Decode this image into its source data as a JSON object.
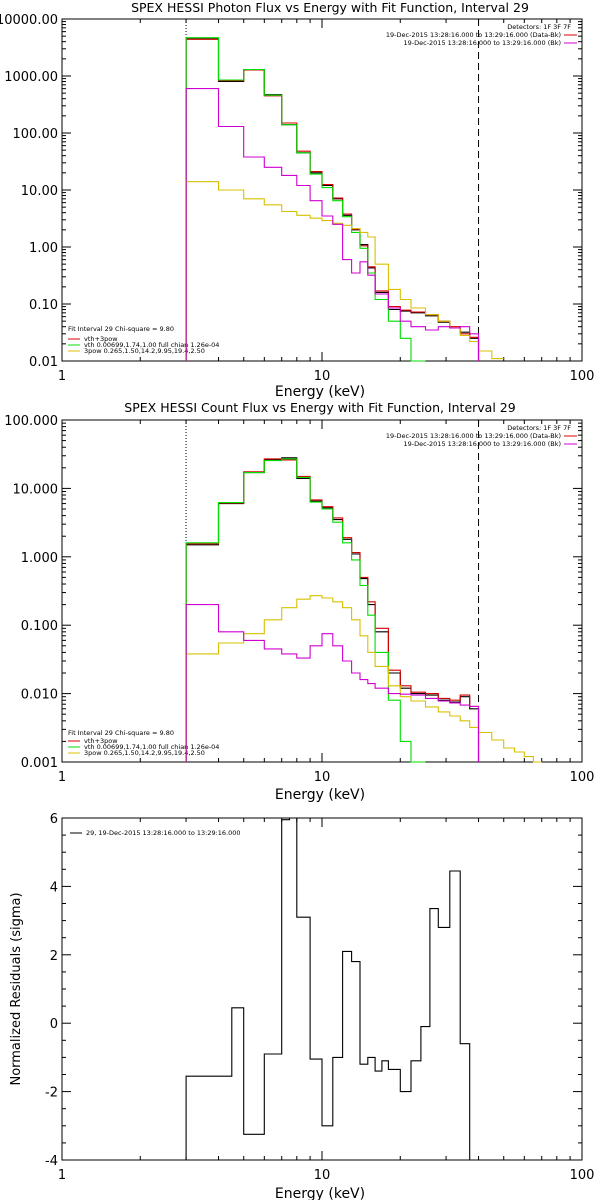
{
  "colors": {
    "data": "#000000",
    "total": "#d40000",
    "thermal": "#00dd00",
    "powerlaw": "#d8c000",
    "background": "#d000d0"
  },
  "chart_data": [
    {
      "type": "line",
      "title": "SPEX HESSI Photon Flux vs Energy with Fit Function, Interval 29",
      "xlabel": "Energy (keV)",
      "ylabel": "",
      "xscale": "log",
      "yscale": "log",
      "xlim": [
        1,
        100
      ],
      "ylim": [
        0.01,
        10000
      ],
      "xtick_labels": [
        "1",
        "10",
        "100"
      ],
      "ytick_labels": [
        "0.01",
        "0.10",
        "1.00",
        "10.00",
        "100.00",
        "1000.00",
        "10000.00"
      ],
      "vertical_lines": [
        {
          "x": 3,
          "style": "dotted"
        },
        {
          "x": 40,
          "style": "dashed"
        }
      ],
      "header_text": [
        "Detectors: 1F 3F 7F",
        "19-Dec-2015 13:28:16.000 to 13:29:16.000 (Data-Bk)",
        "19-Dec-2015 13:28:16.000 to 13:29:16.000 (Bk)"
      ],
      "fit_text": [
        "Fit Interval 29   Chi-square = 9.80",
        "vth+3pow",
        "vth 0.00699,1.74,1.00  full chian 1.26e-04",
        "3pow 0.265,1.50,14.2,9.95,19.4,2.50"
      ],
      "edges": [
        3,
        4,
        5,
        6,
        7,
        8,
        9,
        10,
        11,
        12,
        13,
        14,
        15,
        16,
        18,
        20,
        22,
        25,
        28,
        31,
        34,
        37,
        40,
        45,
        50
      ],
      "series": [
        {
          "color_key": "data",
          "values": [
            4500,
            800,
            1300,
            470,
            140,
            45,
            20,
            12,
            7,
            3.6,
            2.0,
            1.1,
            0.43,
            0.16,
            0.08,
            0.075,
            0.07,
            0.062,
            0.048,
            0.038,
            0.032,
            0.025,
            null,
            null
          ]
        },
        {
          "color_key": "total",
          "values": [
            4400,
            830,
            1280,
            450,
            150,
            48,
            21,
            12.5,
            7.2,
            3.8,
            2.05,
            1.05,
            0.45,
            0.17,
            0.09,
            0.078,
            0.072,
            0.065,
            0.05,
            0.04,
            0.03,
            0.026,
            null,
            null
          ]
        },
        {
          "color_key": "thermal",
          "values": [
            4700,
            850,
            1300,
            460,
            140,
            45,
            19,
            11,
            6.5,
            3.4,
            1.8,
            0.95,
            0.35,
            0.12,
            0.05,
            0.025,
            0.01,
            null,
            null,
            null,
            null,
            null,
            null,
            null
          ]
        },
        {
          "color_key": "powerlaw",
          "values": [
            14,
            10,
            7,
            5.5,
            4.2,
            3.6,
            3.2,
            2.9,
            2.6,
            2.4,
            2.1,
            1.8,
            1.5,
            0.5,
            0.18,
            0.12,
            0.085,
            0.065,
            0.05,
            0.038,
            0.028,
            0.022,
            0.015,
            0.011
          ]
        },
        {
          "color_key": "background",
          "values": [
            600,
            130,
            38,
            25,
            18,
            12,
            6.5,
            3.5,
            2.5,
            0.6,
            0.35,
            0.55,
            0.32,
            0.15,
            0.085,
            0.05,
            0.04,
            0.035,
            0.04,
            0.038,
            0.04,
            0.03,
            null,
            null
          ]
        }
      ]
    },
    {
      "type": "line",
      "title": "SPEX HESSI Count Flux vs Energy with Fit Function, Interval 29",
      "xlabel": "Energy (keV)",
      "ylabel": "",
      "xscale": "log",
      "yscale": "log",
      "xlim": [
        1,
        100
      ],
      "ylim": [
        0.001,
        100
      ],
      "xtick_labels": [
        "1",
        "10",
        "100"
      ],
      "ytick_labels": [
        "0.001",
        "0.010",
        "0.100",
        "1.000",
        "10.000",
        "100.000"
      ],
      "vertical_lines": [
        {
          "x": 3,
          "style": "dotted"
        },
        {
          "x": 40,
          "style": "dashed"
        }
      ],
      "header_text": [
        "Detectors: 1F 3F 7F",
        "19-Dec-2015 13:28:16.000 to 13:29:16.000 (Data-Bk)",
        "19-Dec-2015 13:28:16.000 to 13:29:16.000 (Bk)"
      ],
      "fit_text": [
        "Fit Interval 29   Chi-square = 9.80",
        "vth+3pow",
        "vth 0.00699,1.74,1.00  full chian 1.26e-04",
        "3pow 0.265,1.50,14.2,9.95,19.4,2.50"
      ],
      "edges": [
        3,
        4,
        5,
        6,
        7,
        8,
        9,
        10,
        11,
        12,
        13,
        14,
        15,
        16,
        18,
        20,
        22,
        25,
        28,
        31,
        34,
        37,
        40,
        45,
        50,
        55,
        60,
        65,
        70
      ],
      "series": [
        {
          "color_key": "data",
          "values": [
            1.5,
            6,
            17,
            26,
            28,
            14,
            6.5,
            5.2,
            3.5,
            1.8,
            1.1,
            0.48,
            0.2,
            0.08,
            0.02,
            0.012,
            0.01,
            0.0095,
            0.008,
            0.0075,
            0.009,
            0.006,
            null,
            null,
            null,
            null,
            null,
            null
          ]
        },
        {
          "color_key": "total",
          "values": [
            1.55,
            6.1,
            17.5,
            27,
            26,
            15,
            6.8,
            5.4,
            3.7,
            1.9,
            1.15,
            0.5,
            0.22,
            0.09,
            0.022,
            0.013,
            0.0105,
            0.01,
            0.0085,
            0.008,
            0.0095,
            0.0065,
            null,
            null,
            null,
            null,
            null,
            null
          ]
        },
        {
          "color_key": "thermal",
          "values": [
            1.6,
            6.2,
            17,
            25.5,
            27,
            14.5,
            6.3,
            5,
            3.2,
            1.6,
            0.9,
            0.38,
            0.14,
            0.04,
            0.008,
            0.002,
            0.0008,
            null,
            null,
            null,
            null,
            null,
            null,
            null,
            null,
            null,
            null,
            null
          ]
        },
        {
          "color_key": "powerlaw",
          "values": [
            0.038,
            0.055,
            0.075,
            0.12,
            0.18,
            0.24,
            0.27,
            0.25,
            0.22,
            0.18,
            0.12,
            0.07,
            0.04,
            0.025,
            0.013,
            0.009,
            0.0078,
            0.0064,
            0.0054,
            0.0047,
            0.004,
            0.0032,
            0.0027,
            0.0021,
            0.0016,
            0.0014,
            0.0012,
            0.001
          ]
        },
        {
          "color_key": "background",
          "values": [
            0.2,
            0.08,
            0.06,
            0.045,
            0.038,
            0.033,
            0.05,
            0.075,
            0.05,
            0.03,
            0.02,
            0.016,
            0.014,
            0.012,
            0.01,
            0.0098,
            0.0095,
            0.0085,
            0.0078,
            0.0073,
            0.0068,
            0.0065,
            null,
            null,
            null,
            null,
            null,
            null
          ]
        }
      ]
    },
    {
      "type": "line",
      "title": "",
      "xlabel": "Energy (keV)",
      "ylabel": "Normalized Residuals (sigma)",
      "xscale": "log",
      "yscale": "linear",
      "xlim": [
        1,
        100
      ],
      "ylim": [
        -4,
        6
      ],
      "xtick_labels": [
        "1",
        "10",
        "100"
      ],
      "ytick_labels": [
        "-4",
        "-2",
        "0",
        "2",
        "4",
        "6"
      ],
      "legend": "29, 19-Dec-2015 13:28:16.000 to 13:29:16.000",
      "edges": [
        3,
        4,
        4.5,
        5,
        5.5,
        6,
        7,
        7.5,
        8,
        9,
        10,
        11,
        12,
        13,
        14,
        15,
        16,
        17,
        18,
        20,
        22,
        24,
        26,
        28,
        31,
        34,
        37,
        40
      ],
      "series": [
        {
          "color_key": "data",
          "values": [
            -1.55,
            -1.55,
            0.45,
            -3.25,
            -3.25,
            -0.9,
            5.95,
            6,
            3.1,
            -1.05,
            -3.0,
            -1.0,
            2.1,
            1.8,
            -1.2,
            -1.0,
            -1.4,
            -1.1,
            -1.35,
            -2.0,
            -1.1,
            -0.1,
            3.35,
            2.8,
            4.45,
            -0.6,
            -4
          ]
        }
      ]
    }
  ]
}
